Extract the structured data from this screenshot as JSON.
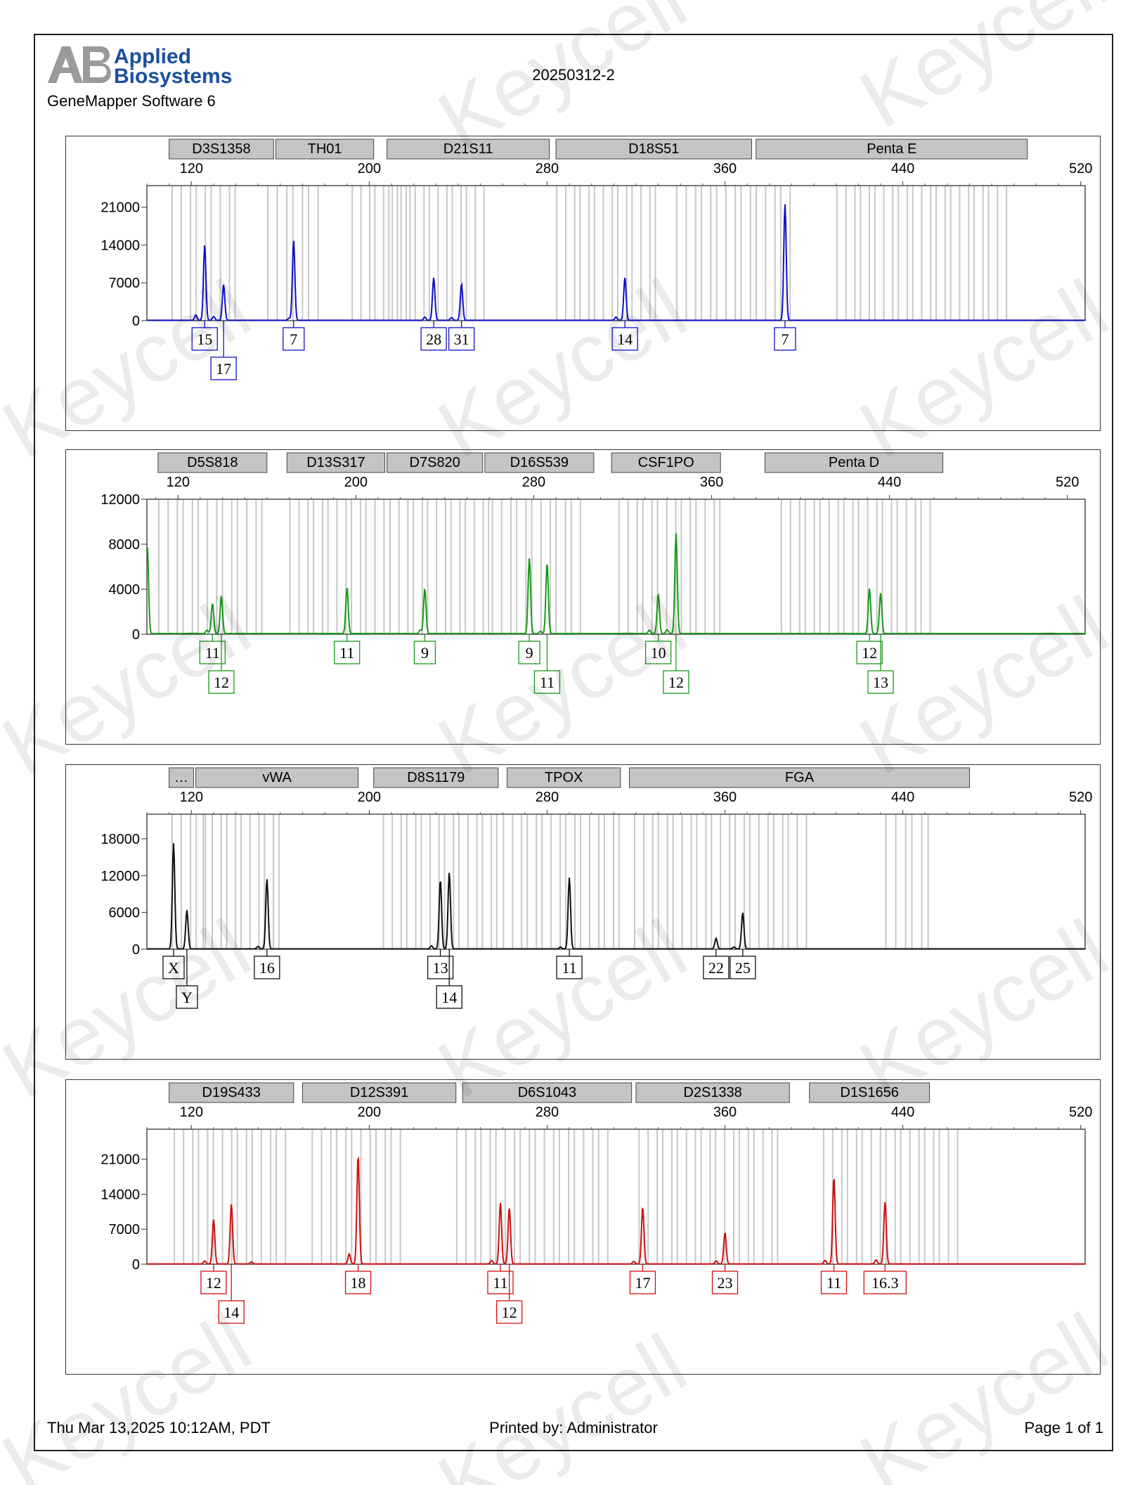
{
  "header": {
    "brand_line1": "Applied",
    "brand_line2": "Biosystems",
    "logo_mark": "AB",
    "software": "GeneMapper Software 6",
    "sample_id": "20250312-2"
  },
  "footer": {
    "date": "Thu Mar 13,2025 10:12AM, PDT",
    "printed_by": "Printed by: Administrator",
    "page": "Page 1 of 1"
  },
  "watermark": "Keycell",
  "chart_data": [
    {
      "type": "line",
      "color": "#1010c8",
      "x_ticks": [
        120,
        200,
        280,
        360,
        440,
        520
      ],
      "xlim": [
        100,
        522
      ],
      "ylim": [
        0,
        25000
      ],
      "y_ticks": [
        0,
        7000,
        14000,
        21000
      ],
      "markers": [
        {
          "name": "D3S1358",
          "range": [
            110,
            157
          ]
        },
        {
          "name": "TH01",
          "range": [
            158,
            202
          ]
        },
        {
          "name": "D21S11",
          "range": [
            208,
            281
          ]
        },
        {
          "name": "D18S51",
          "range": [
            284,
            372
          ]
        },
        {
          "name": "Penta E",
          "range": [
            374,
            496
          ]
        }
      ],
      "bins": [
        [
          112,
          140
        ],
        [
          155,
          177
        ],
        [
          193,
          216
        ],
        [
          211,
          251
        ],
        [
          285,
          329
        ],
        [
          339,
          389
        ],
        [
          411,
          486
        ]
      ],
      "peaks": [
        {
          "x": 126,
          "height": 14000,
          "label": "15",
          "row": 0
        },
        {
          "x": 134.5,
          "height": 6600,
          "label": "17",
          "row": 1
        },
        {
          "x": 166,
          "height": 14800,
          "label": "7",
          "row": 0
        },
        {
          "x": 229,
          "height": 7900,
          "label": "28",
          "row": 0
        },
        {
          "x": 241.5,
          "height": 6700,
          "label": "31",
          "row": 0
        },
        {
          "x": 315,
          "height": 7900,
          "label": "14",
          "row": 0
        },
        {
          "x": 387,
          "height": 21500,
          "label": "7",
          "row": 0
        }
      ],
      "minor_peaks": [
        [
          122,
          1000
        ],
        [
          130,
          700
        ],
        [
          225,
          600
        ],
        [
          237,
          500
        ],
        [
          311,
          600
        ],
        [
          164,
          400
        ]
      ]
    },
    {
      "type": "line",
      "color": "#1a9a1a",
      "x_ticks": [
        120,
        200,
        280,
        360,
        440,
        520
      ],
      "xlim": [
        106,
        528
      ],
      "ylim": [
        0,
        12000
      ],
      "y_ticks": [
        0,
        4000,
        8000,
        12000
      ],
      "markers": [
        {
          "name": "D5S818",
          "range": [
            111,
            160
          ]
        },
        {
          "name": "D13S317",
          "range": [
            169,
            213
          ]
        },
        {
          "name": "D7S820",
          "range": [
            214,
            257
          ]
        },
        {
          "name": "D16S539",
          "range": [
            258,
            307
          ]
        },
        {
          "name": "CSF1PO",
          "range": [
            315,
            364
          ]
        },
        {
          "name": "Penta D",
          "range": [
            384,
            464
          ]
        }
      ],
      "bins": [
        [
          112,
          158
        ],
        [
          171,
          212
        ],
        [
          216,
          260
        ],
        [
          262,
          301
        ],
        [
          319,
          364
        ],
        [
          392,
          458
        ]
      ],
      "peaks": [
        {
          "x": 135.5,
          "height": 2700,
          "label": "11",
          "row": 0
        },
        {
          "x": 139.5,
          "height": 3300,
          "label": "12",
          "row": 1
        },
        {
          "x": 196,
          "height": 4100,
          "label": "11",
          "row": 0
        },
        {
          "x": 231,
          "height": 4000,
          "label": "9",
          "row": 0
        },
        {
          "x": 278,
          "height": 6700,
          "label": "9",
          "row": 0
        },
        {
          "x": 286,
          "height": 6300,
          "label": "11",
          "row": 1
        },
        {
          "x": 336,
          "height": 3500,
          "label": "10",
          "row": 0
        },
        {
          "x": 344,
          "height": 8900,
          "label": "12",
          "row": 1
        },
        {
          "x": 431,
          "height": 4000,
          "label": "12",
          "row": 0
        },
        {
          "x": 436,
          "height": 3600,
          "label": "13",
          "row": 1
        }
      ],
      "minor_peaks": [
        [
          106.2,
          7800
        ],
        [
          133,
          300
        ],
        [
          229,
          300
        ],
        [
          283,
          200
        ],
        [
          332,
          300
        ],
        [
          340,
          350
        ]
      ]
    },
    {
      "type": "line",
      "color": "#111111",
      "x_ticks": [
        120,
        200,
        280,
        360,
        440,
        520
      ],
      "xlim": [
        100,
        522
      ],
      "ylim": [
        0,
        22000
      ],
      "y_ticks": [
        0,
        6000,
        12000,
        18000
      ],
      "markers": [
        {
          "name": "…",
          "range": [
            110,
            121
          ]
        },
        {
          "name": "vWA",
          "range": [
            122,
            195
          ]
        },
        {
          "name": "D8S1179",
          "range": [
            202,
            258
          ]
        },
        {
          "name": "TPOX",
          "range": [
            262,
            313
          ]
        },
        {
          "name": "FGA",
          "range": [
            317,
            470
          ]
        }
      ],
      "bins": [
        [
          112,
          126
        ],
        [
          126,
          160
        ],
        [
          207,
          258
        ],
        [
          261,
          313
        ],
        [
          320,
          396
        ],
        [
          433,
          452
        ]
      ],
      "peaks": [
        {
          "x": 112,
          "height": 17200,
          "label": "X",
          "row": 0
        },
        {
          "x": 118,
          "height": 6300,
          "label": "Y",
          "row": 1
        },
        {
          "x": 154,
          "height": 11400,
          "label": "16",
          "row": 0
        },
        {
          "x": 232,
          "height": 11300,
          "label": "13",
          "row": 0
        },
        {
          "x": 236,
          "height": 12500,
          "label": "14",
          "row": 1
        },
        {
          "x": 290,
          "height": 11600,
          "label": "11",
          "row": 0
        },
        {
          "x": 356,
          "height": 1700,
          "label": "22",
          "row": 0
        },
        {
          "x": 368,
          "height": 5900,
          "label": "25",
          "row": 0
        }
      ],
      "minor_peaks": [
        [
          150,
          400
        ],
        [
          228,
          500
        ],
        [
          286,
          300
        ],
        [
          364,
          300
        ]
      ]
    },
    {
      "type": "line",
      "color": "#d01010",
      "x_ticks": [
        120,
        200,
        280,
        360,
        440,
        520
      ],
      "xlim": [
        100,
        522
      ],
      "ylim": [
        0,
        27000
      ],
      "y_ticks": [
        0,
        7000,
        14000,
        21000
      ],
      "markers": [
        {
          "name": "D19S433",
          "range": [
            110,
            166
          ]
        },
        {
          "name": "D12S391",
          "range": [
            170,
            239
          ]
        },
        {
          "name": "D6S1043",
          "range": [
            242,
            318
          ]
        },
        {
          "name": "D2S1338",
          "range": [
            320,
            389
          ]
        },
        {
          "name": "D1S1656",
          "range": [
            398,
            452
          ]
        }
      ],
      "bins": [
        [
          113,
          162
        ],
        [
          175,
          214
        ],
        [
          240,
          307
        ],
        [
          322,
          384
        ],
        [
          405,
          464
        ]
      ],
      "peaks": [
        {
          "x": 130,
          "height": 8900,
          "label": "12",
          "row": 0
        },
        {
          "x": 138,
          "height": 12000,
          "label": "14",
          "row": 1
        },
        {
          "x": 195,
          "height": 21800,
          "label": "18",
          "row": 0
        },
        {
          "x": 259,
          "height": 12200,
          "label": "11",
          "row": 0
        },
        {
          "x": 263,
          "height": 11300,
          "label": "12",
          "row": 1
        },
        {
          "x": 323,
          "height": 11400,
          "label": "17",
          "row": 0
        },
        {
          "x": 360,
          "height": 6300,
          "label": "23",
          "row": 0
        },
        {
          "x": 409,
          "height": 17400,
          "label": "11",
          "row": 0
        },
        {
          "x": 432,
          "height": 12500,
          "label": "16.3",
          "row": 0
        }
      ],
      "minor_peaks": [
        [
          126,
          600
        ],
        [
          191,
          2000
        ],
        [
          255,
          700
        ],
        [
          319,
          500
        ],
        [
          356,
          600
        ],
        [
          405,
          700
        ],
        [
          428,
          800
        ],
        [
          147,
          400
        ]
      ]
    }
  ]
}
